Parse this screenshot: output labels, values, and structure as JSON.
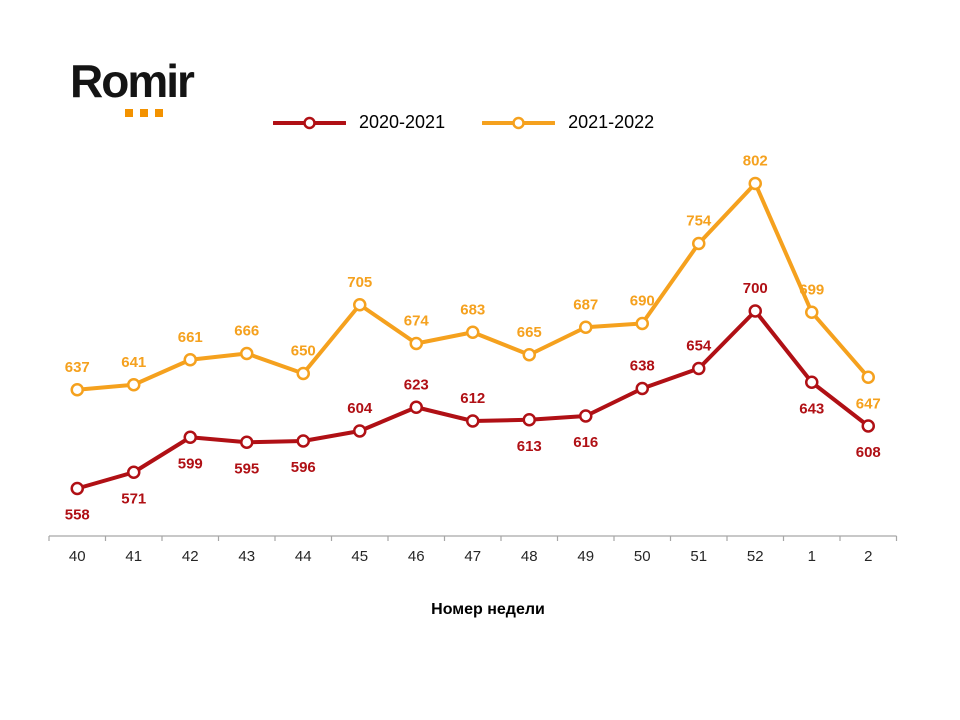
{
  "logo": {
    "text": "Romir"
  },
  "chart_data": {
    "type": "line",
    "title": "",
    "xlabel": "Номер недели",
    "ylabel": "",
    "categories": [
      "40",
      "41",
      "42",
      "43",
      "44",
      "45",
      "46",
      "47",
      "48",
      "49",
      "50",
      "51",
      "52",
      "1",
      "2"
    ],
    "series": [
      {
        "name": "2020-2021",
        "color": "#B01015",
        "values": [
          558,
          571,
          599,
          595,
          596,
          604,
          623,
          612,
          613,
          616,
          638,
          654,
          700,
          643,
          608
        ],
        "label_positions": [
          "below",
          "below",
          "below",
          "below",
          "below",
          "above",
          "above",
          "above",
          "below",
          "below",
          "above",
          "above",
          "above",
          "below",
          "below"
        ]
      },
      {
        "name": "2021-2022",
        "color": "#F5A11E",
        "values": [
          637,
          641,
          661,
          666,
          650,
          705,
          674,
          683,
          665,
          687,
          690,
          754,
          802,
          699,
          647
        ],
        "label_positions": [
          "above",
          "above",
          "above",
          "above",
          "above",
          "above",
          "above",
          "above",
          "above",
          "above",
          "above",
          "above",
          "above",
          "above",
          "below"
        ]
      }
    ],
    "ylim": [
      520,
      820
    ],
    "grid": false,
    "legend_position": "top",
    "data_labels": true
  },
  "colors": {
    "background": "#FFFFFF",
    "logo_text": "#141414",
    "logo_dots": "#F39200",
    "axis": "#A6A6A6",
    "tick_label": "#262626",
    "series_2020_2021": "#B01015",
    "series_2021_2022": "#F5A11E"
  }
}
